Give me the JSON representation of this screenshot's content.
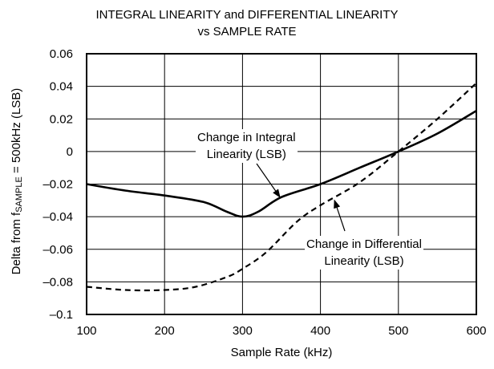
{
  "chart_data": {
    "type": "line",
    "title": "INTEGRAL LINEARITY and DIFFERENTIAL LINEARITY",
    "subtitle": "vs SAMPLE RATE",
    "xlabel": "Sample Rate (kHz)",
    "ylabel": {
      "prefix": "Delta from f",
      "subscript": "SAMPLE",
      "suffix": " = 500kHz (LSB)"
    },
    "xlim": [
      100,
      600
    ],
    "ylim": [
      -0.1,
      0.06
    ],
    "x_ticks": [
      100,
      200,
      300,
      400,
      500,
      600
    ],
    "x_tick_labels": [
      "100",
      "200",
      "300",
      "400",
      "500",
      "600"
    ],
    "y_ticks": [
      0.06,
      0.04,
      0.02,
      0,
      -0.02,
      -0.04,
      -0.06,
      -0.08,
      -0.1
    ],
    "y_tick_labels": [
      "0.06",
      "0.04",
      "0.02",
      "0",
      "–0.02",
      "–0.04",
      "–0.06",
      "–0.08",
      "–0.1"
    ],
    "grid": true,
    "series": [
      {
        "name": "Change in Integral Linearity (LSB)",
        "style": "solid",
        "x": [
          100,
          150,
          200,
          250,
          280,
          300,
          320,
          350,
          400,
          450,
          500,
          550,
          600
        ],
        "y": [
          -0.02,
          -0.024,
          -0.027,
          -0.031,
          -0.037,
          -0.04,
          -0.037,
          -0.028,
          -0.02,
          -0.01,
          0.0,
          0.011,
          0.025
        ]
      },
      {
        "name": "Change in Differential Linearity (LSB)",
        "style": "dashed",
        "x": [
          100,
          150,
          200,
          240,
          280,
          300,
          330,
          370,
          400,
          450,
          500,
          550,
          600
        ],
        "y": [
          -0.083,
          -0.085,
          -0.085,
          -0.083,
          -0.077,
          -0.072,
          -0.062,
          -0.043,
          -0.033,
          -0.019,
          0.0,
          0.02,
          0.042
        ]
      }
    ],
    "annotations": [
      {
        "lines": [
          "Change in Integral",
          "Linearity (LSB)"
        ],
        "series": 0,
        "arrow_to": {
          "x": 348,
          "y": -0.028
        }
      },
      {
        "lines": [
          "Change in Differential",
          "Linearity (LSB)"
        ],
        "series": 1,
        "arrow_to": {
          "x": 418,
          "y": -0.03
        }
      }
    ]
  }
}
